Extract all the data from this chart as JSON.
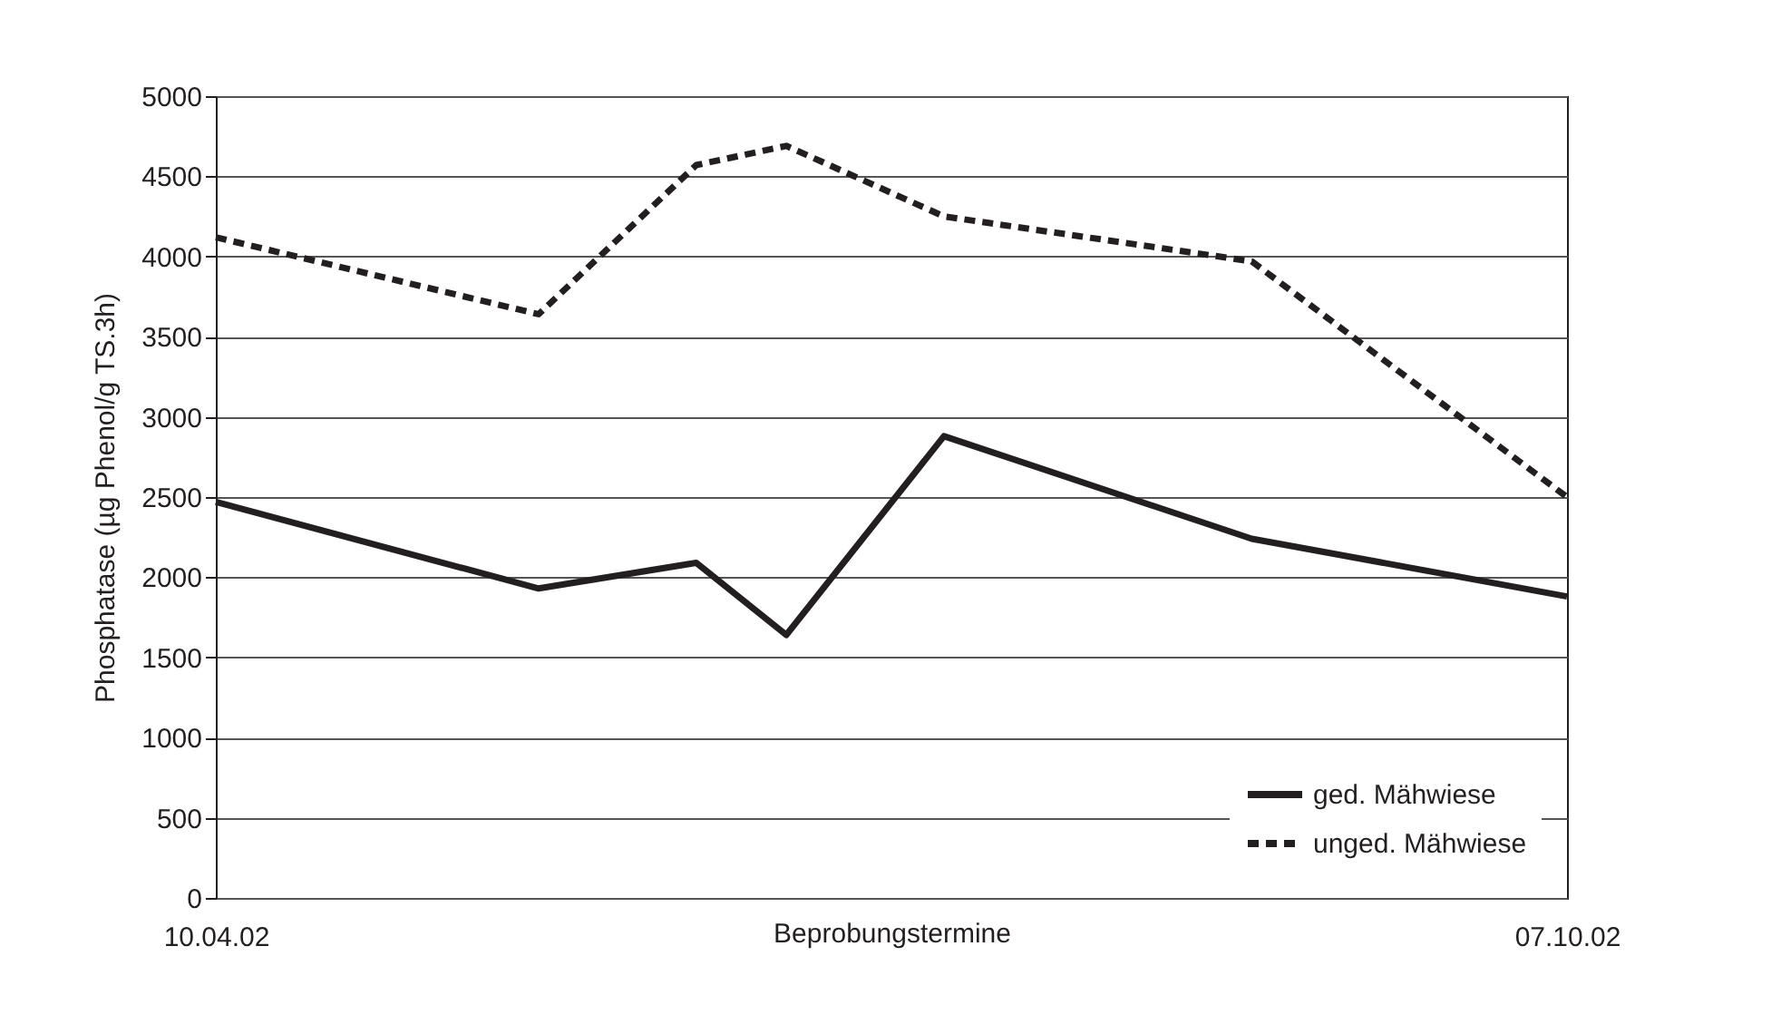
{
  "chart_data": {
    "type": "line",
    "xlabel": "Beprobungstermine",
    "ylabel": "Phosphatase (µg Phenol/g TS.3h)",
    "x": [
      "2002-04-10",
      "2002-05-23",
      "2002-06-13",
      "2002-06-25",
      "2002-07-16",
      "2002-08-26",
      "2002-10-07"
    ],
    "series": [
      {
        "name": "ged. Mähwiese",
        "color": "#231f20",
        "line_style": "solid",
        "values": [
          2470,
          1930,
          2090,
          1640,
          2880,
          2240,
          1880
        ]
      },
      {
        "name": "unged. Mähwiese",
        "color": "#231f20",
        "line_style": "dashed",
        "values": [
          4120,
          3640,
          4570,
          4690,
          4250,
          3970,
          2500
        ]
      }
    ],
    "xlim": [
      "2002-04-10",
      "2002-10-07"
    ],
    "xticks": [
      {
        "value": "2002-04-10",
        "label": "10.04.02"
      },
      {
        "value": "2002-10-07",
        "label": "07.10.02"
      }
    ],
    "ylim": [
      0,
      5000
    ],
    "yticks": [
      0,
      500,
      1000,
      1500,
      2000,
      2500,
      3000,
      3500,
      4000,
      4500,
      5000
    ],
    "grid": "y",
    "legend": "bottom right",
    "marker": "none"
  }
}
